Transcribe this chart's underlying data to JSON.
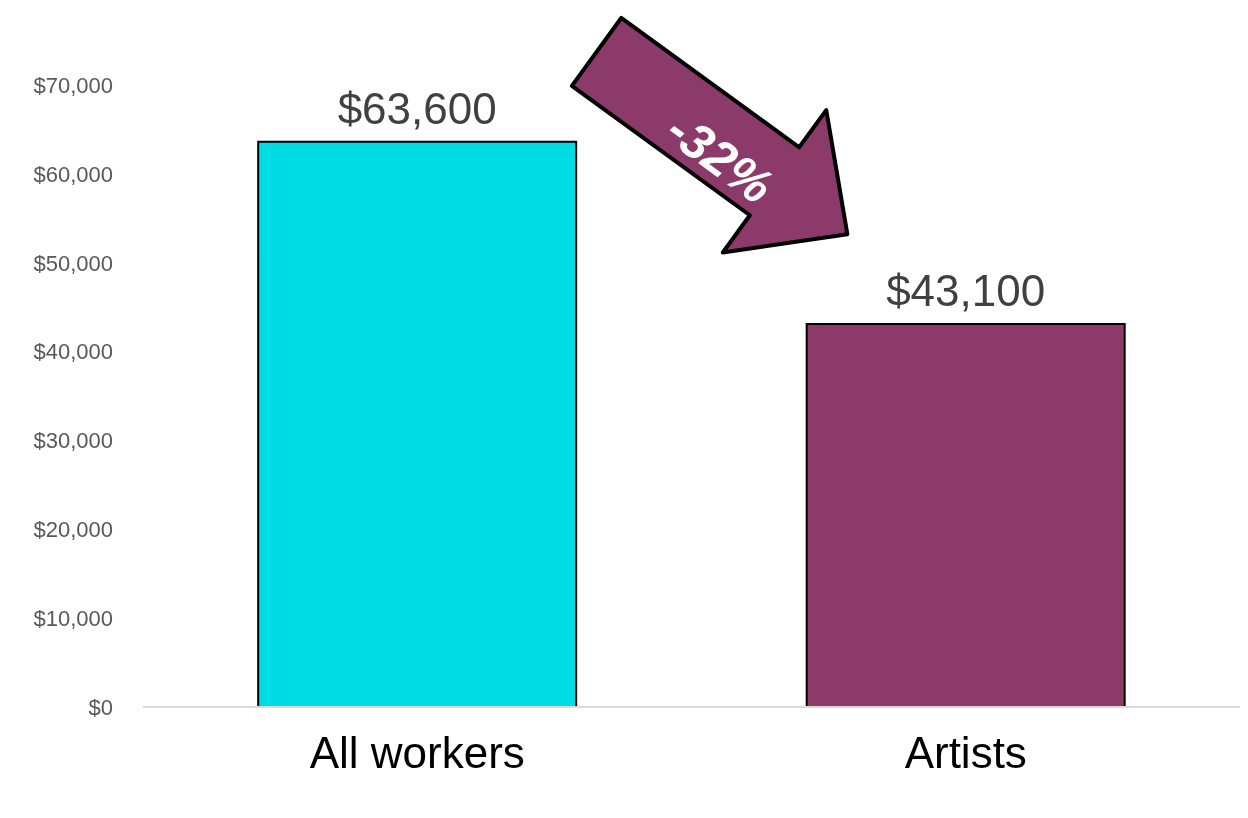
{
  "chart_data": {
    "type": "bar",
    "categories": [
      "All workers",
      "Artists"
    ],
    "values": [
      63600,
      43100
    ],
    "colors": [
      "#00dce3",
      "#8b3a69"
    ],
    "value_labels": [
      "$63,600",
      "$43,100"
    ],
    "ylim": [
      0,
      70000
    ],
    "yticks": [
      {
        "value": 0,
        "label": "$0"
      },
      {
        "value": 10000,
        "label": "$10,000"
      },
      {
        "value": 20000,
        "label": "$20,000"
      },
      {
        "value": 30000,
        "label": "$30,000"
      },
      {
        "value": 40000,
        "label": "$40,000"
      },
      {
        "value": 50000,
        "label": "$50,000"
      },
      {
        "value": 60000,
        "label": "$60,000"
      },
      {
        "value": 70000,
        "label": "$70,000"
      }
    ],
    "grid": false,
    "legend": false,
    "annotations": [
      "-32%"
    ]
  }
}
